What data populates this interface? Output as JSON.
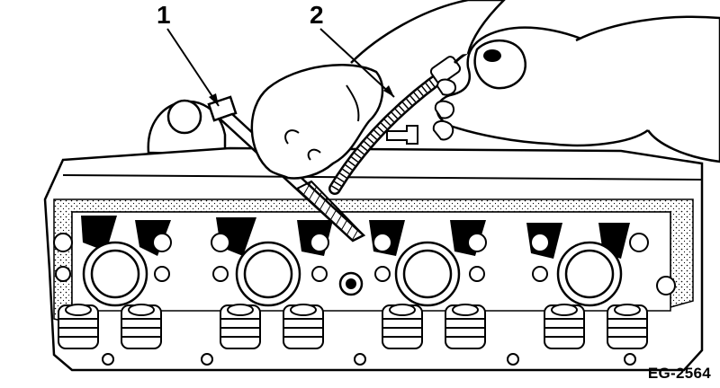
{
  "callouts": {
    "one": "1",
    "two": "2"
  },
  "figure_code": "EG-2564",
  "colors": {
    "ink": "#000000",
    "paper": "#ffffff"
  }
}
